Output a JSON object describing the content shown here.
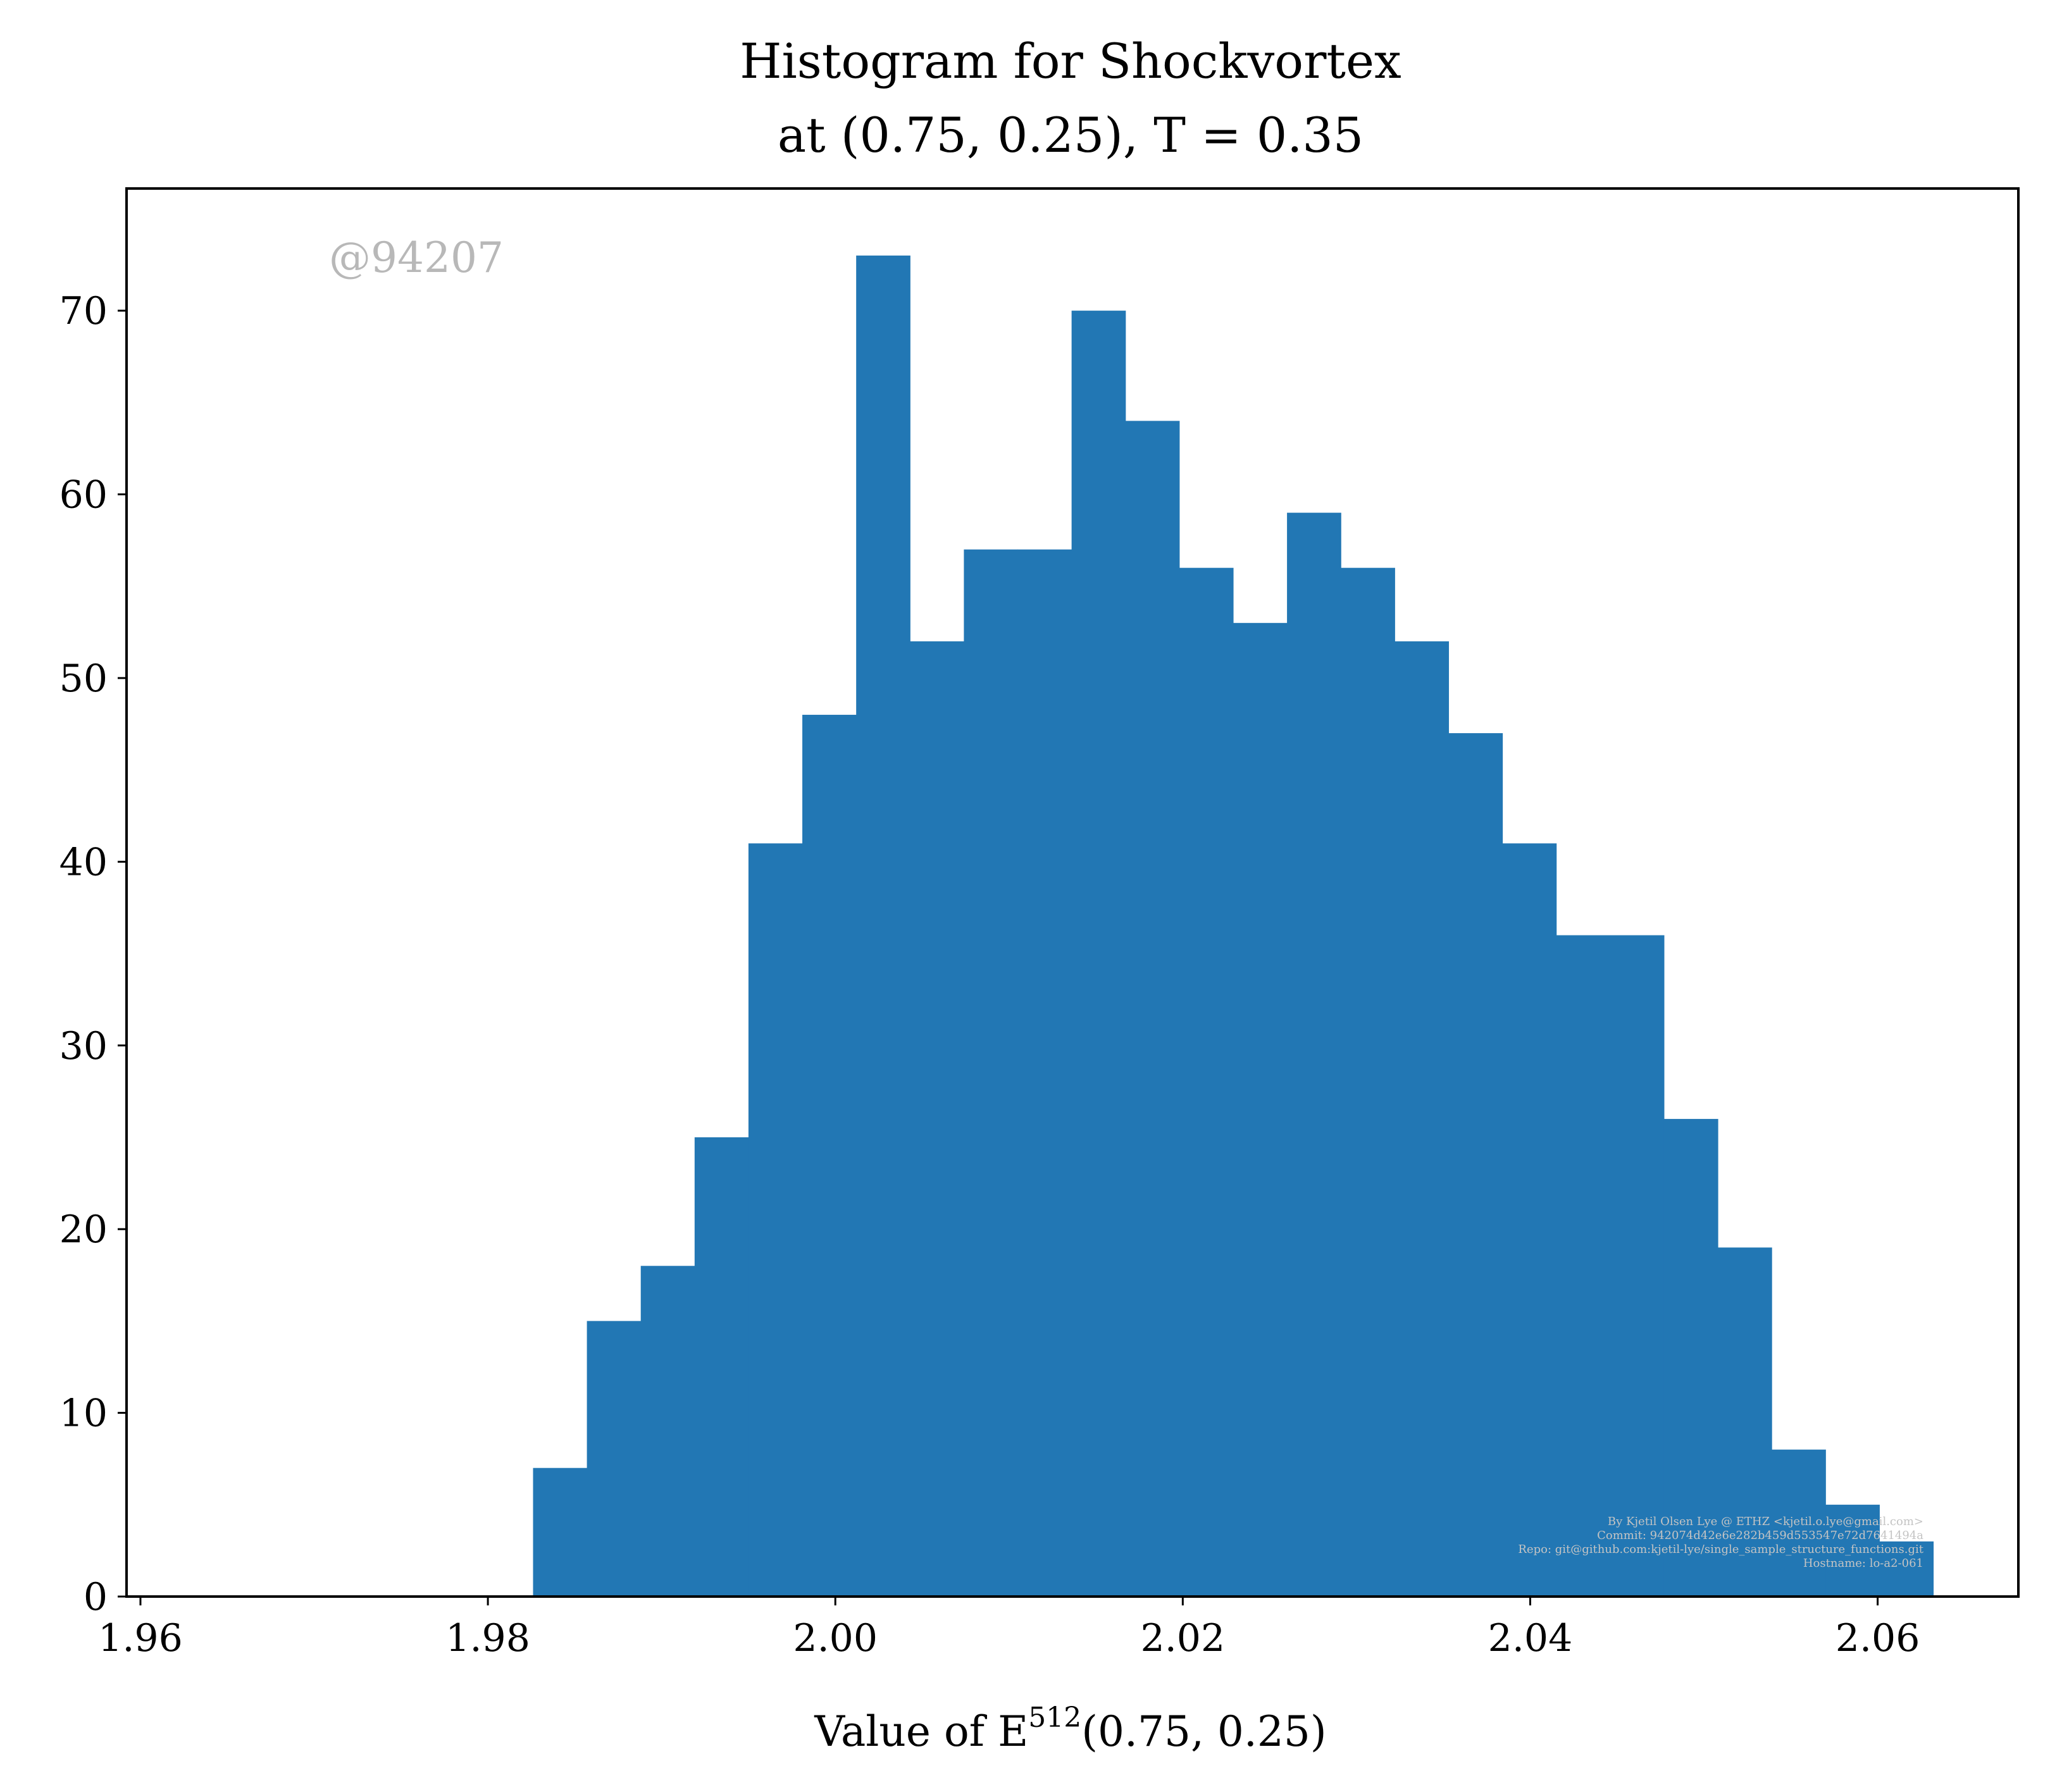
{
  "colors": {
    "bar": "#2277b4",
    "axis": "#000000",
    "watermark": "#b8b8b8",
    "credit": "#c4c4c4"
  },
  "chart_data": {
    "type": "bar",
    "title": "Histogram for Shockvortex",
    "subtitle": "at (0.75, 0.25), T = 0.35",
    "xlabel": "Value of E",
    "xlabel_superscript": "512",
    "xlabel_suffix": "(0.75, 0.25)",
    "ylabel": "",
    "xlim": [
      1.9592,
      2.0681
    ],
    "ylim": [
      0,
      76.65
    ],
    "grid": false,
    "legend": "none",
    "x_ticks": [
      1.96,
      1.98,
      2.0,
      2.02,
      2.04,
      2.06
    ],
    "x_tick_labels": [
      "1.96",
      "1.98",
      "2.00",
      "2.02",
      "2.04",
      "2.06"
    ],
    "y_ticks": [
      0,
      10,
      20,
      30,
      40,
      50,
      60,
      70
    ],
    "y_tick_labels": [
      "0",
      "10",
      "20",
      "30",
      "40",
      "50",
      "60",
      "70"
    ],
    "bin_start": 1.9826,
    "bin_width": 0.0031,
    "values": [
      7,
      15,
      18,
      25,
      41,
      48,
      73,
      52,
      57,
      57,
      70,
      64,
      56,
      53,
      59,
      56,
      52,
      47,
      41,
      36,
      36,
      26,
      19,
      8,
      5,
      3
    ],
    "watermark": "@94207",
    "credit_lines": [
      "By Kjetil Olsen Lye @ ETHZ <kjetil.o.lye@gmail.com>",
      "Commit: 942074d42e6e282b459d553547e72d7641494a",
      "Repo: git@github.com:kjetil-lye/single_sample_structure_functions.git",
      "Hostname: lo-a2-061"
    ]
  }
}
